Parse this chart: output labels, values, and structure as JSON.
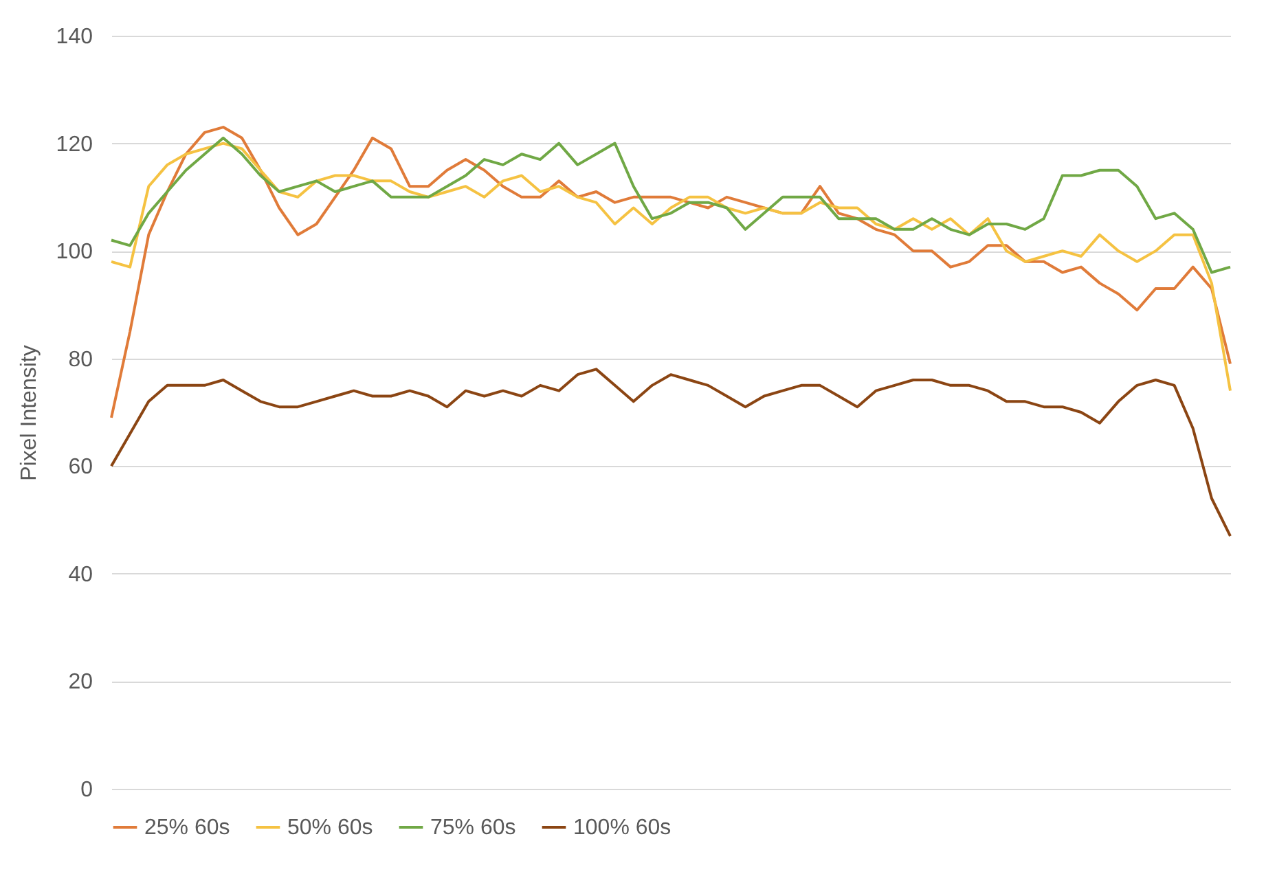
{
  "chart_data": {
    "type": "line",
    "ylabel": "Pixel Intensity",
    "categories": [
      null,
      null,
      null,
      null,
      null,
      null,
      null,
      null,
      null,
      null,
      null,
      null,
      null,
      null,
      null,
      null,
      null,
      null,
      null,
      null,
      null,
      null,
      null,
      null,
      null,
      null,
      null,
      null,
      null,
      null,
      null,
      null,
      null,
      null,
      null,
      null,
      null,
      null,
      null,
      null,
      null,
      null,
      null,
      null,
      null,
      null,
      null,
      null,
      null,
      null,
      null,
      null,
      null,
      null,
      null,
      null,
      null,
      null,
      null,
      null,
      null
    ],
    "ylim": [
      0,
      140
    ],
    "yticks": [
      0,
      20,
      40,
      60,
      80,
      100,
      120,
      140
    ],
    "grid": "y",
    "legend": "bottom",
    "tick_labels": "y",
    "line_style": "solid",
    "marker": "none",
    "series": [
      {
        "name": "25% 60s",
        "color": "#e07b39",
        "values": [
          69,
          85,
          103,
          111,
          118,
          122,
          123,
          121,
          115,
          108,
          103,
          105,
          110,
          115,
          121,
          119,
          112,
          112,
          115,
          117,
          115,
          112,
          110,
          110,
          113,
          110,
          111,
          109,
          110,
          110,
          110,
          109,
          108,
          110,
          109,
          108,
          107,
          107,
          112,
          107,
          106,
          104,
          103,
          100,
          100,
          97,
          98,
          101,
          101,
          98,
          98,
          96,
          97,
          94,
          92,
          89,
          93,
          93,
          97,
          93,
          79
        ]
      },
      {
        "name": "50% 60s",
        "color": "#f5c242",
        "values": [
          98,
          97,
          112,
          116,
          118,
          119,
          120,
          119,
          115,
          111,
          110,
          113,
          114,
          114,
          113,
          113,
          111,
          110,
          111,
          112,
          110,
          113,
          114,
          111,
          112,
          110,
          109,
          105,
          108,
          105,
          108,
          110,
          110,
          108,
          107,
          108,
          107,
          107,
          109,
          108,
          108,
          105,
          104,
          106,
          104,
          106,
          103,
          106,
          100,
          98,
          99,
          100,
          99,
          103,
          100,
          98,
          100,
          103,
          103,
          94,
          74
        ]
      },
      {
        "name": "75% 60s",
        "color": "#70a845",
        "values": [
          102,
          101,
          107,
          111,
          115,
          118,
          121,
          118,
          114,
          111,
          112,
          113,
          111,
          112,
          113,
          110,
          110,
          110,
          112,
          114,
          117,
          116,
          118,
          117,
          120,
          116,
          118,
          120,
          112,
          106,
          107,
          109,
          109,
          108,
          104,
          107,
          110,
          110,
          110,
          106,
          106,
          106,
          104,
          104,
          106,
          104,
          103,
          105,
          105,
          104,
          106,
          114,
          114,
          115,
          115,
          112,
          106,
          107,
          104,
          96,
          97
        ]
      },
      {
        "name": "100% 60s",
        "color": "#8b4513",
        "values": [
          60,
          66,
          72,
          75,
          75,
          75,
          76,
          74,
          72,
          71,
          71,
          72,
          73,
          74,
          73,
          73,
          74,
          73,
          71,
          74,
          73,
          74,
          73,
          75,
          74,
          77,
          78,
          75,
          72,
          75,
          77,
          76,
          75,
          73,
          71,
          73,
          74,
          75,
          75,
          73,
          71,
          74,
          75,
          76,
          76,
          75,
          75,
          74,
          72,
          72,
          71,
          71,
          70,
          68,
          72,
          75,
          76,
          75,
          67,
          54,
          47
        ]
      }
    ]
  }
}
